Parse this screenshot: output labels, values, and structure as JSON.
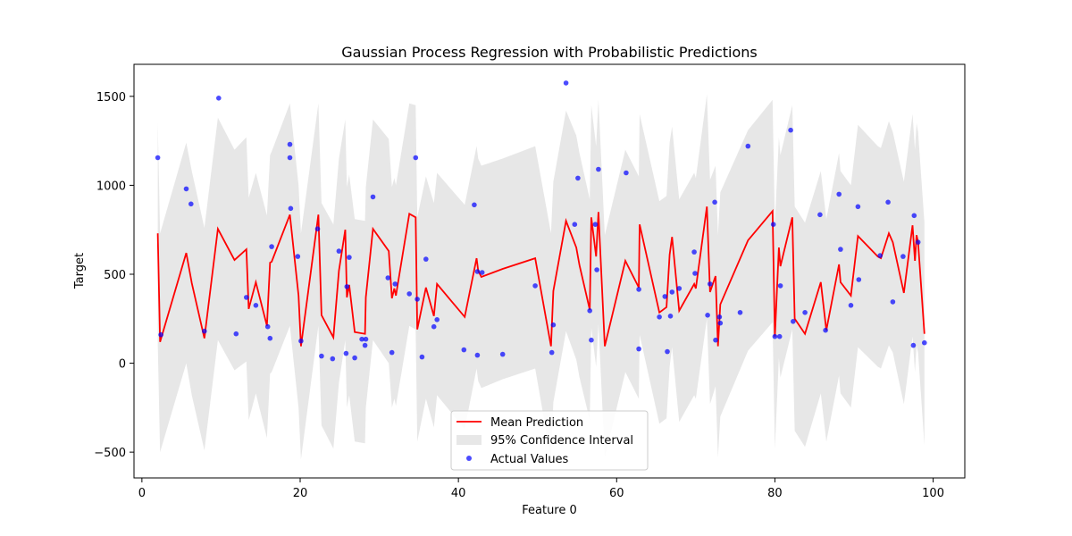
{
  "chart_data": {
    "type": "line",
    "title": "Gaussian Process Regression with Probabilistic Predictions",
    "xlabel": "Feature 0",
    "ylabel": "Target",
    "xlim": [
      -1,
      104
    ],
    "ylim": [
      -645,
      1680
    ],
    "xticks": [
      0,
      20,
      40,
      60,
      80,
      100
    ],
    "yticks": [
      -500,
      0,
      500,
      1000,
      1500
    ],
    "xtick_labels": [
      "0",
      "20",
      "40",
      "60",
      "80",
      "100"
    ],
    "ytick_labels": [
      "−500",
      "0",
      "500",
      "1000",
      "1500"
    ],
    "grid": false,
    "legend_position": "lower-center",
    "colors": {
      "mean": "#ff0000",
      "interval": "#d3d3d3",
      "points": "#0000ff"
    },
    "legend": {
      "mean": "Mean Prediction",
      "interval": "95% Confidence Interval",
      "points": "Actual Values"
    },
    "mean_prediction": [
      [
        2.0,
        730
      ],
      [
        2.3,
        120
      ],
      [
        5.6,
        620
      ],
      [
        6.3,
        450
      ],
      [
        7.9,
        140
      ],
      [
        9.6,
        755
      ],
      [
        11.7,
        580
      ],
      [
        13.2,
        640
      ],
      [
        13.5,
        305
      ],
      [
        14.4,
        455
      ],
      [
        15.8,
        210
      ],
      [
        16.2,
        565
      ],
      [
        16.4,
        570
      ],
      [
        18.7,
        835
      ],
      [
        19.8,
        380
      ],
      [
        20.1,
        95
      ],
      [
        22.3,
        835
      ],
      [
        22.7,
        270
      ],
      [
        24.2,
        145
      ],
      [
        24.9,
        520
      ],
      [
        25.7,
        750
      ],
      [
        25.9,
        370
      ],
      [
        26.2,
        440
      ],
      [
        26.9,
        175
      ],
      [
        28.2,
        165
      ],
      [
        28.3,
        370
      ],
      [
        29.2,
        755
      ],
      [
        31.2,
        630
      ],
      [
        31.6,
        365
      ],
      [
        31.9,
        420
      ],
      [
        32.1,
        380
      ],
      [
        33.8,
        840
      ],
      [
        34.6,
        820
      ],
      [
        34.8,
        190
      ],
      [
        35.9,
        425
      ],
      [
        36.9,
        265
      ],
      [
        37.3,
        445
      ],
      [
        40.8,
        260
      ],
      [
        42.3,
        590
      ],
      [
        42.5,
        520
      ],
      [
        42.9,
        485
      ],
      [
        45.6,
        530
      ],
      [
        49.7,
        590
      ],
      [
        51.7,
        95
      ],
      [
        52.0,
        405
      ],
      [
        53.6,
        800
      ],
      [
        54.9,
        650
      ],
      [
        55.3,
        550
      ],
      [
        56.6,
        300
      ],
      [
        56.8,
        820
      ],
      [
        57.4,
        600
      ],
      [
        57.7,
        850
      ],
      [
        58.5,
        95
      ],
      [
        61.1,
        575
      ],
      [
        62.8,
        425
      ],
      [
        62.9,
        780
      ],
      [
        65.4,
        285
      ],
      [
        66.3,
        315
      ],
      [
        66.7,
        610
      ],
      [
        67.0,
        710
      ],
      [
        67.9,
        295
      ],
      [
        69.8,
        445
      ],
      [
        70.0,
        420
      ],
      [
        71.4,
        880
      ],
      [
        71.8,
        400
      ],
      [
        72.5,
        490
      ],
      [
        72.8,
        95
      ],
      [
        73.1,
        330
      ],
      [
        76.6,
        690
      ],
      [
        79.7,
        855
      ],
      [
        80.0,
        150
      ],
      [
        80.5,
        650
      ],
      [
        80.7,
        545
      ],
      [
        82.2,
        820
      ],
      [
        82.5,
        250
      ],
      [
        83.8,
        165
      ],
      [
        85.8,
        455
      ],
      [
        86.5,
        185
      ],
      [
        88.1,
        555
      ],
      [
        88.3,
        455
      ],
      [
        89.6,
        380
      ],
      [
        90.5,
        715
      ],
      [
        93.0,
        600
      ],
      [
        93.4,
        590
      ],
      [
        94.4,
        730
      ],
      [
        94.9,
        680
      ],
      [
        96.3,
        395
      ],
      [
        97.4,
        775
      ],
      [
        97.7,
        575
      ],
      [
        97.9,
        720
      ],
      [
        98.1,
        680
      ],
      [
        98.9,
        165
      ]
    ],
    "confidence_upper": [
      [
        2.0,
        1350
      ],
      [
        2.3,
        730
      ],
      [
        5.6,
        1240
      ],
      [
        6.3,
        1080
      ],
      [
        7.9,
        760
      ],
      [
        9.6,
        1380
      ],
      [
        11.7,
        1200
      ],
      [
        13.2,
        1270
      ],
      [
        13.5,
        930
      ],
      [
        14.4,
        1070
      ],
      [
        15.8,
        830
      ],
      [
        16.2,
        1170
      ],
      [
        16.4,
        1190
      ],
      [
        18.7,
        1460
      ],
      [
        19.8,
        1000
      ],
      [
        20.1,
        730
      ],
      [
        22.3,
        1460
      ],
      [
        22.7,
        900
      ],
      [
        24.2,
        780
      ],
      [
        24.9,
        1150
      ],
      [
        25.7,
        1370
      ],
      [
        25.9,
        990
      ],
      [
        26.2,
        1060
      ],
      [
        26.9,
        810
      ],
      [
        28.2,
        800
      ],
      [
        28.3,
        990
      ],
      [
        29.2,
        1370
      ],
      [
        31.2,
        1260
      ],
      [
        31.6,
        990
      ],
      [
        31.9,
        1040
      ],
      [
        32.1,
        1000
      ],
      [
        33.8,
        1460
      ],
      [
        34.6,
        1450
      ],
      [
        34.8,
        820
      ],
      [
        35.9,
        1050
      ],
      [
        36.9,
        900
      ],
      [
        37.3,
        1070
      ],
      [
        40.8,
        890
      ],
      [
        42.3,
        1220
      ],
      [
        42.5,
        1150
      ],
      [
        42.9,
        1110
      ],
      [
        45.6,
        1150
      ],
      [
        49.7,
        1220
      ],
      [
        51.7,
        730
      ],
      [
        52.0,
        1020
      ],
      [
        53.6,
        1420
      ],
      [
        54.9,
        1280
      ],
      [
        55.3,
        1180
      ],
      [
        56.6,
        920
      ],
      [
        56.8,
        1450
      ],
      [
        57.4,
        1220
      ],
      [
        57.7,
        1480
      ],
      [
        58.5,
        720
      ],
      [
        61.1,
        1200
      ],
      [
        62.8,
        1050
      ],
      [
        62.9,
        1400
      ],
      [
        65.4,
        910
      ],
      [
        66.3,
        940
      ],
      [
        66.7,
        1240
      ],
      [
        67.0,
        1330
      ],
      [
        67.9,
        920
      ],
      [
        69.8,
        1070
      ],
      [
        70.0,
        1040
      ],
      [
        71.4,
        1510
      ],
      [
        71.8,
        1030
      ],
      [
        72.5,
        1110
      ],
      [
        72.8,
        720
      ],
      [
        73.1,
        960
      ],
      [
        76.6,
        1310
      ],
      [
        79.7,
        1480
      ],
      [
        80.0,
        780
      ],
      [
        80.5,
        1270
      ],
      [
        80.7,
        1170
      ],
      [
        82.2,
        1450
      ],
      [
        82.5,
        880
      ],
      [
        83.8,
        790
      ],
      [
        85.8,
        1080
      ],
      [
        86.5,
        810
      ],
      [
        88.1,
        1180
      ],
      [
        88.3,
        1080
      ],
      [
        89.6,
        1000
      ],
      [
        90.5,
        1340
      ],
      [
        93.0,
        1220
      ],
      [
        93.4,
        1210
      ],
      [
        94.4,
        1360
      ],
      [
        94.9,
        1300
      ],
      [
        96.3,
        1020
      ],
      [
        97.4,
        1400
      ],
      [
        97.7,
        1200
      ],
      [
        97.9,
        1350
      ],
      [
        98.1,
        1300
      ],
      [
        98.9,
        790
      ]
    ],
    "confidence_lower": [
      [
        2.0,
        110
      ],
      [
        2.3,
        -500
      ],
      [
        5.6,
        0
      ],
      [
        6.3,
        -180
      ],
      [
        7.9,
        -490
      ],
      [
        9.6,
        130
      ],
      [
        11.7,
        -40
      ],
      [
        13.2,
        10
      ],
      [
        13.5,
        -320
      ],
      [
        14.4,
        -170
      ],
      [
        15.8,
        -420
      ],
      [
        16.2,
        -60
      ],
      [
        16.4,
        -50
      ],
      [
        18.7,
        210
      ],
      [
        19.8,
        -250
      ],
      [
        20.1,
        -540
      ],
      [
        22.3,
        210
      ],
      [
        22.7,
        -350
      ],
      [
        24.2,
        -480
      ],
      [
        24.9,
        -110
      ],
      [
        25.7,
        130
      ],
      [
        25.9,
        -250
      ],
      [
        26.2,
        -180
      ],
      [
        26.9,
        -440
      ],
      [
        28.2,
        -450
      ],
      [
        28.3,
        -250
      ],
      [
        29.2,
        130
      ],
      [
        31.2,
        0
      ],
      [
        31.6,
        -250
      ],
      [
        31.9,
        -200
      ],
      [
        32.1,
        -240
      ],
      [
        33.8,
        210
      ],
      [
        34.6,
        190
      ],
      [
        34.8,
        -440
      ],
      [
        35.9,
        -200
      ],
      [
        36.9,
        -360
      ],
      [
        37.3,
        -180
      ],
      [
        40.8,
        -370
      ],
      [
        42.3,
        -30
      ],
      [
        42.5,
        -100
      ],
      [
        42.9,
        -140
      ],
      [
        45.6,
        -90
      ],
      [
        49.7,
        -30
      ],
      [
        51.7,
        -540
      ],
      [
        52.0,
        -220
      ],
      [
        53.6,
        180
      ],
      [
        54.9,
        20
      ],
      [
        55.3,
        -80
      ],
      [
        56.6,
        -320
      ],
      [
        56.8,
        200
      ],
      [
        57.4,
        -20
      ],
      [
        57.7,
        220
      ],
      [
        58.5,
        -530
      ],
      [
        61.1,
        -50
      ],
      [
        62.8,
        -200
      ],
      [
        62.9,
        160
      ],
      [
        65.4,
        -340
      ],
      [
        66.3,
        -310
      ],
      [
        66.7,
        -20
      ],
      [
        67.0,
        90
      ],
      [
        67.9,
        -330
      ],
      [
        69.8,
        -180
      ],
      [
        70.0,
        -200
      ],
      [
        71.4,
        250
      ],
      [
        71.8,
        -230
      ],
      [
        72.5,
        -130
      ],
      [
        72.8,
        -530
      ],
      [
        73.1,
        -300
      ],
      [
        76.6,
        70
      ],
      [
        79.7,
        230
      ],
      [
        80.0,
        -480
      ],
      [
        80.5,
        30
      ],
      [
        80.7,
        -80
      ],
      [
        82.2,
        190
      ],
      [
        82.5,
        -380
      ],
      [
        83.8,
        -470
      ],
      [
        85.8,
        -170
      ],
      [
        86.5,
        -440
      ],
      [
        88.1,
        -70
      ],
      [
        88.3,
        -170
      ],
      [
        89.6,
        -250
      ],
      [
        90.5,
        90
      ],
      [
        93.0,
        -20
      ],
      [
        93.4,
        -30
      ],
      [
        94.4,
        100
      ],
      [
        94.9,
        60
      ],
      [
        96.3,
        -230
      ],
      [
        97.4,
        150
      ],
      [
        97.7,
        -50
      ],
      [
        97.9,
        100
      ],
      [
        98.1,
        60
      ],
      [
        98.9,
        -460
      ]
    ],
    "actual_values": [
      [
        2.0,
        1155
      ],
      [
        2.4,
        160
      ],
      [
        5.6,
        980
      ],
      [
        6.2,
        895
      ],
      [
        7.9,
        180
      ],
      [
        9.7,
        1490
      ],
      [
        11.9,
        165
      ],
      [
        13.2,
        370
      ],
      [
        14.4,
        325
      ],
      [
        15.9,
        205
      ],
      [
        16.2,
        140
      ],
      [
        16.4,
        655
      ],
      [
        18.7,
        1230
      ],
      [
        18.7,
        1155
      ],
      [
        18.8,
        870
      ],
      [
        19.7,
        600
      ],
      [
        20.1,
        125
      ],
      [
        22.2,
        755
      ],
      [
        22.7,
        40
      ],
      [
        24.1,
        25
      ],
      [
        24.9,
        630
      ],
      [
        25.8,
        55
      ],
      [
        25.9,
        430
      ],
      [
        26.2,
        595
      ],
      [
        26.9,
        30
      ],
      [
        27.8,
        135
      ],
      [
        28.2,
        100
      ],
      [
        28.3,
        135
      ],
      [
        29.2,
        935
      ],
      [
        31.1,
        480
      ],
      [
        31.6,
        60
      ],
      [
        32.0,
        445
      ],
      [
        33.8,
        390
      ],
      [
        34.6,
        1155
      ],
      [
        34.8,
        360
      ],
      [
        35.4,
        35
      ],
      [
        35.9,
        585
      ],
      [
        36.9,
        205
      ],
      [
        37.3,
        245
      ],
      [
        40.7,
        75
      ],
      [
        42.0,
        890
      ],
      [
        42.4,
        45
      ],
      [
        42.4,
        515
      ],
      [
        43.0,
        510
      ],
      [
        45.6,
        50
      ],
      [
        49.7,
        435
      ],
      [
        51.8,
        60
      ],
      [
        52.0,
        215
      ],
      [
        53.6,
        1575
      ],
      [
        54.7,
        780
      ],
      [
        55.1,
        1040
      ],
      [
        56.6,
        295
      ],
      [
        56.8,
        130
      ],
      [
        57.3,
        780
      ],
      [
        57.5,
        525
      ],
      [
        57.7,
        1090
      ],
      [
        61.2,
        1070
      ],
      [
        62.8,
        415
      ],
      [
        62.8,
        80
      ],
      [
        65.4,
        260
      ],
      [
        66.1,
        375
      ],
      [
        66.4,
        65
      ],
      [
        66.8,
        265
      ],
      [
        67.0,
        400
      ],
      [
        67.9,
        420
      ],
      [
        69.8,
        625
      ],
      [
        69.9,
        505
      ],
      [
        71.5,
        270
      ],
      [
        71.8,
        445
      ],
      [
        72.4,
        905
      ],
      [
        72.5,
        130
      ],
      [
        73.0,
        260
      ],
      [
        73.1,
        225
      ],
      [
        75.6,
        285
      ],
      [
        76.6,
        1220
      ],
      [
        79.8,
        780
      ],
      [
        80.0,
        150
      ],
      [
        80.6,
        150
      ],
      [
        80.7,
        435
      ],
      [
        82.0,
        1310
      ],
      [
        82.3,
        235
      ],
      [
        83.8,
        285
      ],
      [
        85.7,
        835
      ],
      [
        86.4,
        185
      ],
      [
        88.1,
        950
      ],
      [
        88.3,
        640
      ],
      [
        89.6,
        325
      ],
      [
        90.5,
        880
      ],
      [
        90.6,
        470
      ],
      [
        93.3,
        605
      ],
      [
        94.3,
        905
      ],
      [
        94.9,
        345
      ],
      [
        96.2,
        600
      ],
      [
        97.5,
        100
      ],
      [
        97.6,
        830
      ],
      [
        98.1,
        680
      ],
      [
        98.9,
        115
      ]
    ]
  }
}
